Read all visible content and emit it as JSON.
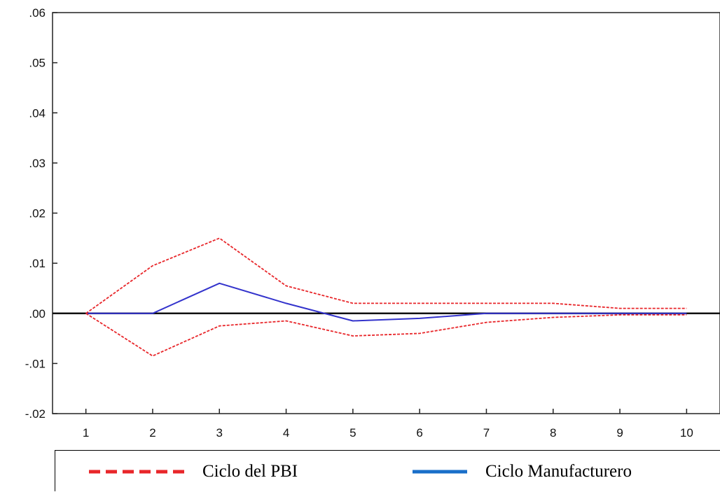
{
  "chart_data": {
    "type": "line",
    "x": [
      1,
      2,
      3,
      4,
      5,
      6,
      7,
      8,
      9,
      10
    ],
    "ylim": [
      -0.02,
      0.06
    ],
    "y_ticks": [
      ".06",
      ".05",
      ".04",
      ".03",
      ".02",
      ".01",
      ".00",
      "-.01",
      "-.02"
    ],
    "x_ticks": [
      "1",
      "2",
      "3",
      "4",
      "5",
      "6",
      "7",
      "8",
      "9",
      "10"
    ],
    "zero_line": true,
    "grid": false,
    "legend_position": "bottom",
    "series": [
      {
        "name": "Ciclo Manufacturero",
        "role": "response",
        "color": "#3333cc",
        "style": "solid",
        "values": [
          0.0,
          0.0,
          0.006,
          0.002,
          -0.0015,
          -0.001,
          0.0,
          0.0,
          0.0,
          0.0
        ]
      },
      {
        "name": "Ciclo del PBI",
        "role": "upper band",
        "color": "#e8262a",
        "style": "dashed",
        "values": [
          0.0,
          0.0095,
          0.015,
          0.0055,
          0.002,
          0.002,
          0.002,
          0.002,
          0.001,
          0.001
        ]
      },
      {
        "name": "Ciclo del PBI",
        "role": "lower band",
        "color": "#e8262a",
        "style": "dashed",
        "values": [
          0.0,
          -0.0085,
          -0.0025,
          -0.0015,
          -0.0045,
          -0.004,
          -0.0018,
          -0.0008,
          -0.0003,
          -0.0003
        ]
      }
    ]
  },
  "legend": {
    "items": [
      {
        "label": "Ciclo del PBI",
        "color": "#e8262a",
        "style": "dashed"
      },
      {
        "label": "Ciclo Manufacturero",
        "color": "#1a6fc9",
        "style": "solid"
      }
    ]
  }
}
